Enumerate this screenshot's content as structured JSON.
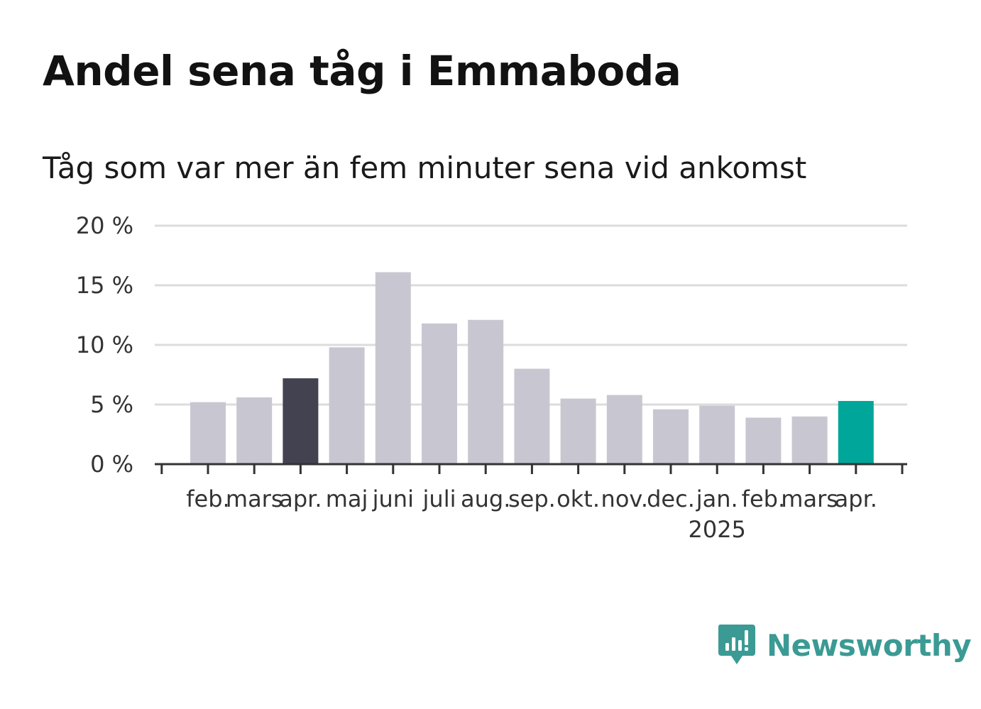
{
  "header": {
    "title": "Andel sena tåg i Emmaboda",
    "subtitle": "Tåg som var mer än fem minuter sena vid ankomst"
  },
  "brand": {
    "name": "Newsworthy",
    "icon": "newsworthy-logo-icon",
    "color": "#3b9a94"
  },
  "colors": {
    "bar_default": "#c8c7d1",
    "bar_highlight_dark": "#434250",
    "bar_highlight_current": "#00a69a",
    "grid": "#dcdcdc",
    "axis": "#333333"
  },
  "chart_data": {
    "type": "bar",
    "categories": [
      "feb.",
      "mars",
      "apr.",
      "maj",
      "juni",
      "juli",
      "aug.",
      "sep.",
      "okt.",
      "nov.",
      "dec.",
      "jan.",
      "feb.",
      "mars",
      "apr."
    ],
    "year_labels": [
      {
        "index": 11,
        "label": "2025"
      }
    ],
    "values": [
      5.2,
      5.6,
      7.2,
      9.8,
      16.1,
      11.8,
      12.1,
      8.0,
      5.5,
      5.8,
      4.6,
      4.9,
      3.9,
      4.0,
      5.3
    ],
    "highlight": {
      "2": "dark",
      "14": "current"
    },
    "ylim": [
      0,
      20
    ],
    "yticks": [
      0,
      5,
      10,
      15,
      20
    ],
    "ytick_labels": [
      "0 %",
      "5 %",
      "10 %",
      "15 %",
      "20 %"
    ],
    "grid": true,
    "legend": "none"
  }
}
